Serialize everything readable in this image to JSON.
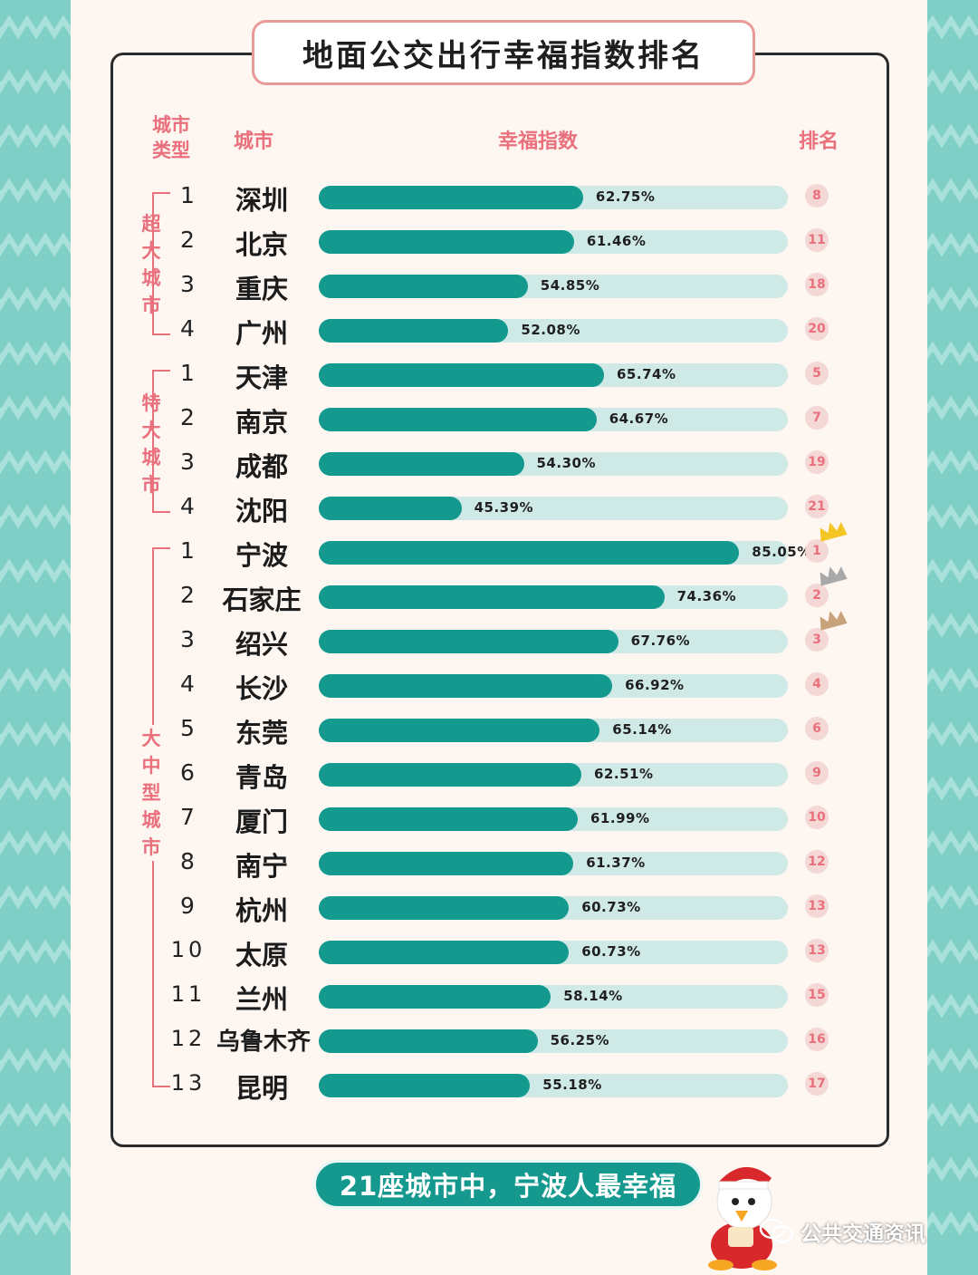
{
  "header": {
    "title": "地面公交出行幸福指数排名",
    "col_type": "城市类型",
    "col_city": "城市",
    "col_index": "幸福指数",
    "col_rank": "排名"
  },
  "groups": [
    {
      "label": "超大城市"
    },
    {
      "label": "特大城市"
    },
    {
      "label": "大中型城市"
    }
  ],
  "footer": {
    "slogan": "21座城市中，宁波人最幸福",
    "watermark": "公共交通资讯"
  },
  "colors": {
    "bar": "#14998e",
    "track": "#cfe9e6",
    "accent": "#e9707c"
  },
  "chart_data": {
    "type": "bar",
    "orientation": "horizontal",
    "title": "地面公交出行幸福指数排名",
    "xlim": [
      0,
      100
    ],
    "unit": "%",
    "rows": [
      {
        "group": 0,
        "no": "1",
        "city": "深圳",
        "value": 62.75,
        "label": "62.75%",
        "rank": "8"
      },
      {
        "group": 0,
        "no": "2",
        "city": "北京",
        "value": 61.46,
        "label": "61.46%",
        "rank": "11"
      },
      {
        "group": 0,
        "no": "3",
        "city": "重庆",
        "value": 54.85,
        "label": "54.85%",
        "rank": "18"
      },
      {
        "group": 0,
        "no": "4",
        "city": "广州",
        "value": 52.08,
        "label": "52.08%",
        "rank": "20"
      },
      {
        "group": 1,
        "no": "1",
        "city": "天津",
        "value": 65.74,
        "label": "65.74%",
        "rank": "5"
      },
      {
        "group": 1,
        "no": "2",
        "city": "南京",
        "value": 64.67,
        "label": "64.67%",
        "rank": "7"
      },
      {
        "group": 1,
        "no": "3",
        "city": "成都",
        "value": 54.3,
        "label": "54.30%",
        "rank": "19"
      },
      {
        "group": 1,
        "no": "4",
        "city": "沈阳",
        "value": 45.39,
        "label": "45.39%",
        "rank": "21"
      },
      {
        "group": 2,
        "no": "1",
        "city": "宁波",
        "value": 85.05,
        "label": "85.05%",
        "rank": "1",
        "crown": "gold"
      },
      {
        "group": 2,
        "no": "2",
        "city": "石家庄",
        "value": 74.36,
        "label": "74.36%",
        "rank": "2",
        "crown": "silver"
      },
      {
        "group": 2,
        "no": "3",
        "city": "绍兴",
        "value": 67.76,
        "label": "67.76%",
        "rank": "3",
        "crown": "bronze"
      },
      {
        "group": 2,
        "no": "4",
        "city": "长沙",
        "value": 66.92,
        "label": "66.92%",
        "rank": "4"
      },
      {
        "group": 2,
        "no": "5",
        "city": "东莞",
        "value": 65.14,
        "label": "65.14%",
        "rank": "6"
      },
      {
        "group": 2,
        "no": "6",
        "city": "青岛",
        "value": 62.51,
        "label": "62.51%",
        "rank": "9"
      },
      {
        "group": 2,
        "no": "7",
        "city": "厦门",
        "value": 61.99,
        "label": "61.99%",
        "rank": "10"
      },
      {
        "group": 2,
        "no": "8",
        "city": "南宁",
        "value": 61.37,
        "label": "61.37%",
        "rank": "12"
      },
      {
        "group": 2,
        "no": "9",
        "city": "杭州",
        "value": 60.73,
        "label": "60.73%",
        "rank": "13"
      },
      {
        "group": 2,
        "no": "10",
        "city": "太原",
        "value": 60.73,
        "label": "60.73%",
        "rank": "13"
      },
      {
        "group": 2,
        "no": "11",
        "city": "兰州",
        "value": 58.14,
        "label": "58.14%",
        "rank": "15"
      },
      {
        "group": 2,
        "no": "12",
        "city": "乌鲁木齐",
        "value": 56.25,
        "label": "56.25%",
        "rank": "16"
      },
      {
        "group": 2,
        "no": "13",
        "city": "昆明",
        "value": 55.18,
        "label": "55.18%",
        "rank": "17"
      }
    ]
  }
}
